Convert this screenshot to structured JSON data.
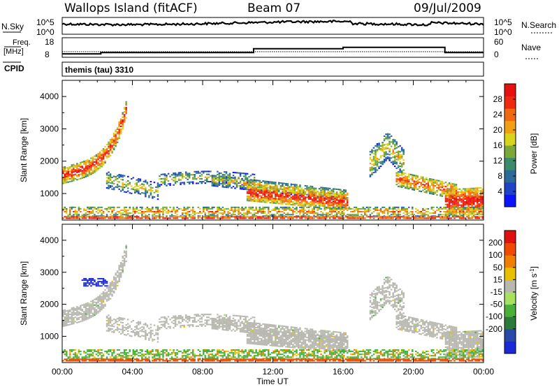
{
  "header": {
    "site": "Wallops Island (fitACF)",
    "beam": "Beam 07",
    "date": "09/Jul/2009"
  },
  "noise_panel": {
    "left_label": "N.Sky",
    "right_label": "N.Search",
    "left_ticks": [
      "10^5",
      "10^0"
    ],
    "right_ticks": [
      "10^5",
      "10^0"
    ]
  },
  "freq_panel": {
    "left_label_line1": "Freq.",
    "left_label_line2": "[MHz]",
    "left_ticks": [
      "18",
      "8"
    ],
    "right_label": "Nave",
    "right_ticks": [
      "60",
      "0"
    ],
    "freq_steps": [
      {
        "from": 0,
        "to": 2.2,
        "value": 9.3
      },
      {
        "from": 2.2,
        "to": 10.9,
        "value": 10.2
      },
      {
        "from": 10.9,
        "to": 16.0,
        "value": 12.7
      },
      {
        "from": 16.0,
        "to": 21.8,
        "value": 13.6
      },
      {
        "from": 21.8,
        "to": 24.0,
        "value": 10.2
      }
    ],
    "freq_range": [
      8,
      18
    ]
  },
  "cpid": {
    "label": "CPID",
    "program": "themis (tau) 3310"
  },
  "chart_data": [
    {
      "type": "heatmap",
      "name": "power",
      "xlabel": "",
      "ylabel": "Slant Range [km]",
      "xlim": [
        0,
        24
      ],
      "ylim": [
        180,
        4500
      ],
      "y_ticks": [
        "1000",
        "2000",
        "3000",
        "4000"
      ],
      "colorbar_label": "Power [dB]",
      "colorbar_ticks": [
        "4",
        "8",
        "12",
        "16",
        "20",
        "24",
        "28"
      ],
      "colorbar_colors": [
        "#0a14ff",
        "#2044c8",
        "#2c6a9a",
        "#3c8a6c",
        "#7ca83a",
        "#d8d41c",
        "#f0a010",
        "#f06a10",
        "#f02810",
        "#e61010"
      ]
    },
    {
      "type": "heatmap",
      "name": "velocity",
      "xlabel": "Time UT",
      "ylabel": "Slant Range [km]",
      "xlim": [
        0,
        24
      ],
      "ylim": [
        180,
        4500
      ],
      "x_ticks": [
        "00:00",
        "04:00",
        "08:00",
        "12:00",
        "16:00",
        "20:00",
        "00:00"
      ],
      "y_ticks": [
        "1000",
        "2000",
        "3000",
        "4000"
      ],
      "colorbar_label": "Velocity [m s",
      "colorbar_label_sup": "-1",
      "colorbar_label_end": "]",
      "colorbar_ticks": [
        "200",
        "100",
        "50",
        "15",
        "-15",
        "-50",
        "-100",
        "-200"
      ],
      "colorbar_colors": [
        "#1a2ad8",
        "#2a4aa8",
        "#2a7a3a",
        "#4ab03a",
        "#a8e060",
        "#b8b8b0",
        "#e8c000",
        "#f07e00",
        "#f04a00",
        "#e01010"
      ]
    }
  ],
  "colors": {
    "ground_scatter": "#b8b8b0",
    "frame": "#000000"
  }
}
